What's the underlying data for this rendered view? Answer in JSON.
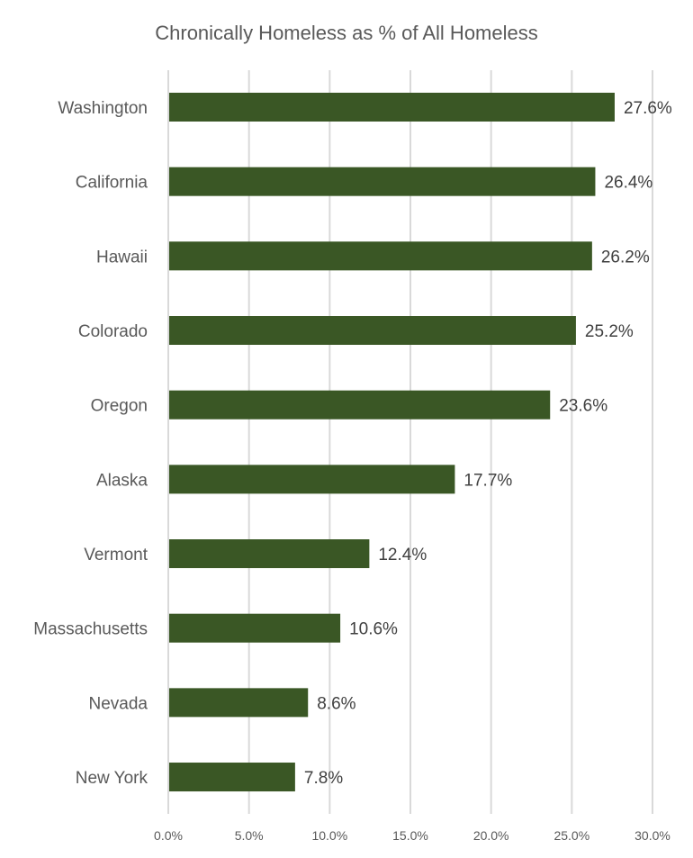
{
  "chart_data": {
    "type": "bar",
    "orientation": "horizontal",
    "title": "Chronically Homeless as % of All Homeless",
    "xlabel": "",
    "ylabel": "",
    "categories": [
      "Washington",
      "California",
      "Hawaii",
      "Colorado",
      "Oregon",
      "Alaska",
      "Vermont",
      "Massachusetts",
      "Nevada",
      "New York"
    ],
    "values": [
      27.6,
      26.4,
      26.2,
      25.2,
      23.6,
      17.7,
      12.4,
      10.6,
      8.6,
      7.8
    ],
    "data_labels": [
      "27.6%",
      "26.4%",
      "26.2%",
      "25.2%",
      "23.6%",
      "17.7%",
      "12.4%",
      "10.6%",
      "8.6%",
      "7.8%"
    ],
    "xlim": [
      0,
      30
    ],
    "x_ticks": [
      0,
      5,
      10,
      15,
      20,
      25,
      30
    ],
    "x_tick_labels": [
      "0.0%",
      "5.0%",
      "10.0%",
      "15.0%",
      "20.0%",
      "25.0%",
      "30.0%"
    ],
    "grid": true,
    "legend": "none",
    "bar_color": "#3a5725"
  }
}
